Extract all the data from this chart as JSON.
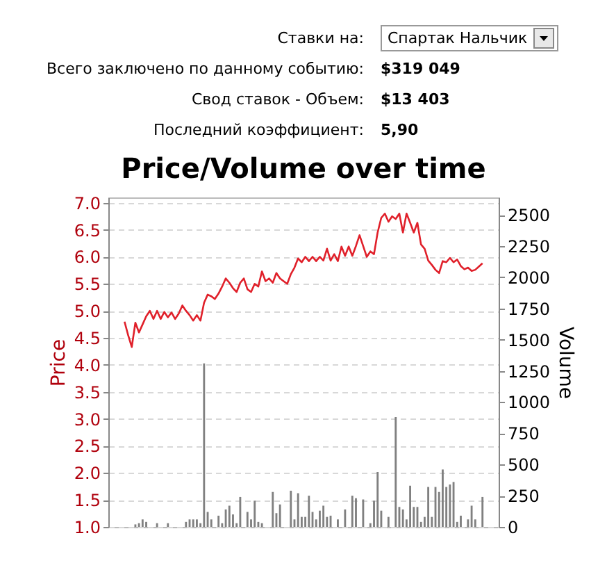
{
  "chart_data": {
    "type": "line",
    "title": "Price/Volume over time",
    "ylabel": "Price",
    "y2label": "Volume",
    "annotations": [
      "Ставки на:",
      "Спартак Нальчик",
      "Всего заключено по данному событию:",
      "$319 049",
      "Свод ставок - Объем:",
      "$13 403",
      "Последний коэффициент:",
      "5,90"
    ],
    "categories": [
      null,
      null,
      null,
      null,
      null,
      null,
      null,
      null,
      null,
      null,
      null,
      null,
      null,
      null,
      null,
      null,
      null,
      null,
      null,
      null,
      null,
      null,
      null,
      null,
      null,
      null,
      null,
      null,
      null,
      null,
      null,
      null,
      null,
      null,
      null,
      null,
      null,
      null,
      null,
      null,
      null,
      null,
      null,
      null,
      null,
      null,
      null,
      null,
      null,
      null,
      null,
      null,
      null,
      null,
      null,
      null,
      null,
      null,
      null,
      null,
      null,
      null,
      null,
      null,
      null,
      null,
      null,
      null,
      null,
      null,
      null,
      null,
      null,
      null,
      null,
      null,
      null,
      null,
      null,
      null,
      null,
      null,
      null,
      null,
      null,
      null,
      null,
      null,
      null,
      null,
      null,
      null,
      null,
      null,
      null,
      null,
      null,
      null,
      null,
      null,
      null,
      null,
      null,
      null,
      null,
      null,
      null,
      null
    ],
    "series": [
      {
        "type": "bar",
        "axis": "y2",
        "color": "#808080",
        "values": [
          null,
          null,
          null,
          null,
          null,
          null,
          null,
          20,
          30,
          60,
          40,
          null,
          null,
          30,
          null,
          null,
          30,
          null,
          null,
          null,
          null,
          40,
          60,
          60,
          60,
          30,
          1310,
          120,
          60,
          null,
          90,
          30,
          140,
          170,
          100,
          30,
          240,
          null,
          120,
          60,
          210,
          40,
          30,
          null,
          null,
          280,
          110,
          180,
          null,
          null,
          290,
          60,
          270,
          80,
          80,
          250,
          120,
          60,
          130,
          170,
          80,
          90,
          null,
          60,
          null,
          140,
          null,
          250,
          230,
          null,
          220,
          null,
          30,
          210,
          440,
          130,
          null,
          80,
          null,
          880,
          160,
          140,
          60,
          330,
          160,
          160,
          40,
          80,
          320,
          80,
          320,
          280,
          460,
          320,
          340,
          360,
          40,
          90,
          null,
          60,
          170,
          60,
          null,
          240,
          null,
          null,
          null,
          null
        ]
      },
      {
        "color": "#e0202a",
        "values": [
          null,
          null,
          null,
          null,
          4.8,
          4.55,
          4.33,
          4.78,
          4.6,
          4.75,
          4.9,
          5.0,
          4.85,
          5.0,
          4.85,
          4.98,
          4.88,
          4.97,
          4.85,
          4.95,
          5.1,
          5.0,
          4.92,
          4.82,
          4.92,
          4.82,
          5.15,
          5.3,
          5.27,
          5.22,
          5.32,
          5.45,
          5.6,
          5.52,
          5.42,
          5.35,
          5.52,
          5.6,
          5.4,
          5.35,
          5.5,
          5.45,
          5.73,
          5.55,
          5.6,
          5.52,
          5.7,
          5.6,
          5.55,
          5.5,
          5.68,
          5.8,
          5.97,
          5.9,
          6.0,
          5.92,
          6.0,
          5.92,
          6.0,
          5.93,
          6.15,
          5.93,
          6.05,
          5.92,
          6.19,
          6.02,
          6.19,
          6.02,
          6.2,
          6.4,
          6.2,
          6.0,
          6.1,
          6.05,
          6.45,
          6.72,
          6.8,
          6.65,
          6.75,
          6.7,
          6.8,
          6.45,
          6.8,
          6.63,
          6.45,
          6.63,
          6.23,
          6.15,
          5.93,
          5.85,
          5.76,
          5.7,
          5.92,
          5.9,
          5.98,
          5.9,
          5.95,
          5.83,
          5.77,
          5.8,
          5.74,
          5.76,
          5.82,
          5.88,
          null,
          null,
          null,
          null
        ]
      }
    ],
    "ylim": [
      1.0,
      7.1
    ],
    "yticks": [
      {
        "value": 1,
        "label": "1.0"
      },
      {
        "value": 1.5,
        "label": "1.5"
      },
      {
        "value": 2,
        "label": "2.0"
      },
      {
        "value": 2.5,
        "label": "2.5"
      },
      {
        "value": 3,
        "label": "3.0"
      },
      {
        "value": 3.5,
        "label": "3.5"
      },
      {
        "value": 4,
        "label": "4.0"
      },
      {
        "value": 4.5,
        "label": "4.5"
      },
      {
        "value": 5,
        "label": "5.0"
      },
      {
        "value": 5.5,
        "label": "5.5"
      },
      {
        "value": 6,
        "label": "6.0"
      },
      {
        "value": 6.5,
        "label": "6.5"
      },
      {
        "value": 7,
        "label": "7.0"
      }
    ],
    "y2lim": [
      0,
      2640
    ],
    "y2ticks": [
      0,
      250,
      500,
      750,
      1000,
      1250,
      1500,
      1750,
      2000,
      2250,
      2500
    ],
    "grid": "y",
    "tick_labels": "y"
  }
}
